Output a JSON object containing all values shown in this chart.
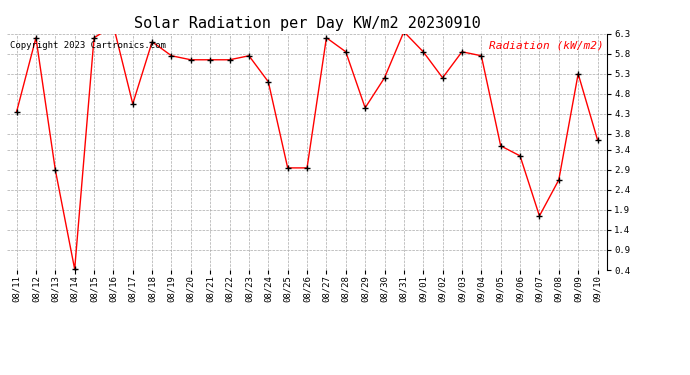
{
  "title": "Solar Radiation per Day KW/m2 20230910",
  "copyright": "Copyright 2023 Cartronics.com",
  "legend_label": "Radiation (kW/m2)",
  "dates": [
    "08/11",
    "08/12",
    "08/13",
    "08/14",
    "08/15",
    "08/16",
    "08/17",
    "08/18",
    "08/19",
    "08/20",
    "08/21",
    "08/22",
    "08/23",
    "08/24",
    "08/25",
    "08/26",
    "08/27",
    "08/28",
    "08/29",
    "08/30",
    "08/31",
    "09/01",
    "09/02",
    "09/03",
    "09/04",
    "09/05",
    "09/06",
    "09/07",
    "09/08",
    "09/09",
    "09/10"
  ],
  "values": [
    4.35,
    6.2,
    2.9,
    0.42,
    6.2,
    6.5,
    4.55,
    6.1,
    5.75,
    5.65,
    5.65,
    5.65,
    5.75,
    5.1,
    2.95,
    2.95,
    6.2,
    5.85,
    4.45,
    5.2,
    6.35,
    5.85,
    5.2,
    5.85,
    5.75,
    3.5,
    3.25,
    1.75,
    2.65,
    5.3,
    3.65
  ],
  "ylim": [
    0.4,
    6.3
  ],
  "yticks": [
    0.4,
    0.9,
    1.4,
    1.9,
    2.4,
    2.9,
    3.4,
    3.8,
    4.3,
    4.8,
    5.3,
    5.8,
    6.3
  ],
  "line_color": "red",
  "marker_color": "black",
  "grid_color": "#aaaaaa",
  "bg_color": "white",
  "title_fontsize": 11,
  "copyright_fontsize": 6.5,
  "legend_fontsize": 8,
  "tick_fontsize": 6.5
}
